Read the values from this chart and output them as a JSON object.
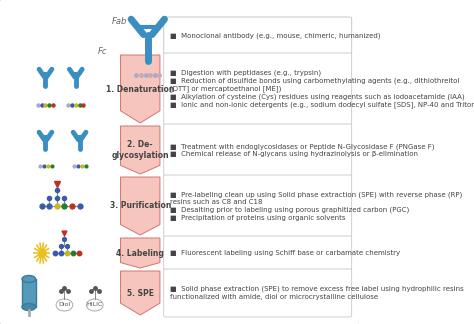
{
  "bg_color": "#ffffff",
  "border_color": "#7bafc4",
  "arrow_fill": "#f5c5be",
  "arrow_edge": "#d4756e",
  "box_border_color": "#c8c8c8",
  "box_bg_color": "#ffffff",
  "bullet_color": "#444444",
  "step_label_color": "#444444",
  "label_color": "#666666",
  "steps": [
    {
      "label": "1. Denaturation",
      "bullets": [
        "Digestion with peptidases (e.g., trypsin)",
        "Reduction of disulfide bonds using carbomethylating agents (e.g., dithiothreitol\n[DTT] or mercaptoethanol [ME])",
        "Alkylation of cysteine (Cys) residues using reagents such as iodoacetamide (IAA)",
        "Ionic and non-ionic detergents (e.g., sodium dodecyl sulfate [SDS], NP-40 and Triton)"
      ]
    },
    {
      "label": "2. De-\nglycosylation",
      "bullets": [
        "Treatment with endoglycosidases or Peptide N-Glycosidase F (PNGase F)",
        "Chemical release of N-glycans using hydrazinolysis or β-elimination"
      ]
    },
    {
      "label": "3. Purification",
      "bullets": [
        "Pre-labeling clean up using Solid phase extraction (SPE) with reverse phase (RP)\nresins such as C8 and C18",
        "Desalting prior to labeling using porous graphitized carbon (PGC)",
        "Precipitation of proteins using organic solvents"
      ]
    },
    {
      "label": "4. Labeling",
      "bullets": [
        "Fluorescent labeling using Schiff base or carbamate chemistry"
      ]
    },
    {
      "label": "5. SPE",
      "bullets": [
        "Solid phase extraction (SPE) to remove excess free label using hydrophilic resins\nfunctionalized with amide, diol or microcrystalline cellulose"
      ]
    }
  ],
  "intro_bullet": "Monoclonal antibody (e.g., mouse, chimeric, humanized)",
  "fab_label": "Fab",
  "fc_label": "Fc",
  "icon_color": "#3a8fc0",
  "glycan_colors": [
    "#3a5ca8",
    "#3a5ca8",
    "#c8b820",
    "#2a7a30",
    "#c03020"
  ],
  "star_color": "#e8c020",
  "col_color": "#3a8fc0",
  "bullet_fontsize": 5.0,
  "step_fontsize": 5.5,
  "label_fontsize": 6.0
}
